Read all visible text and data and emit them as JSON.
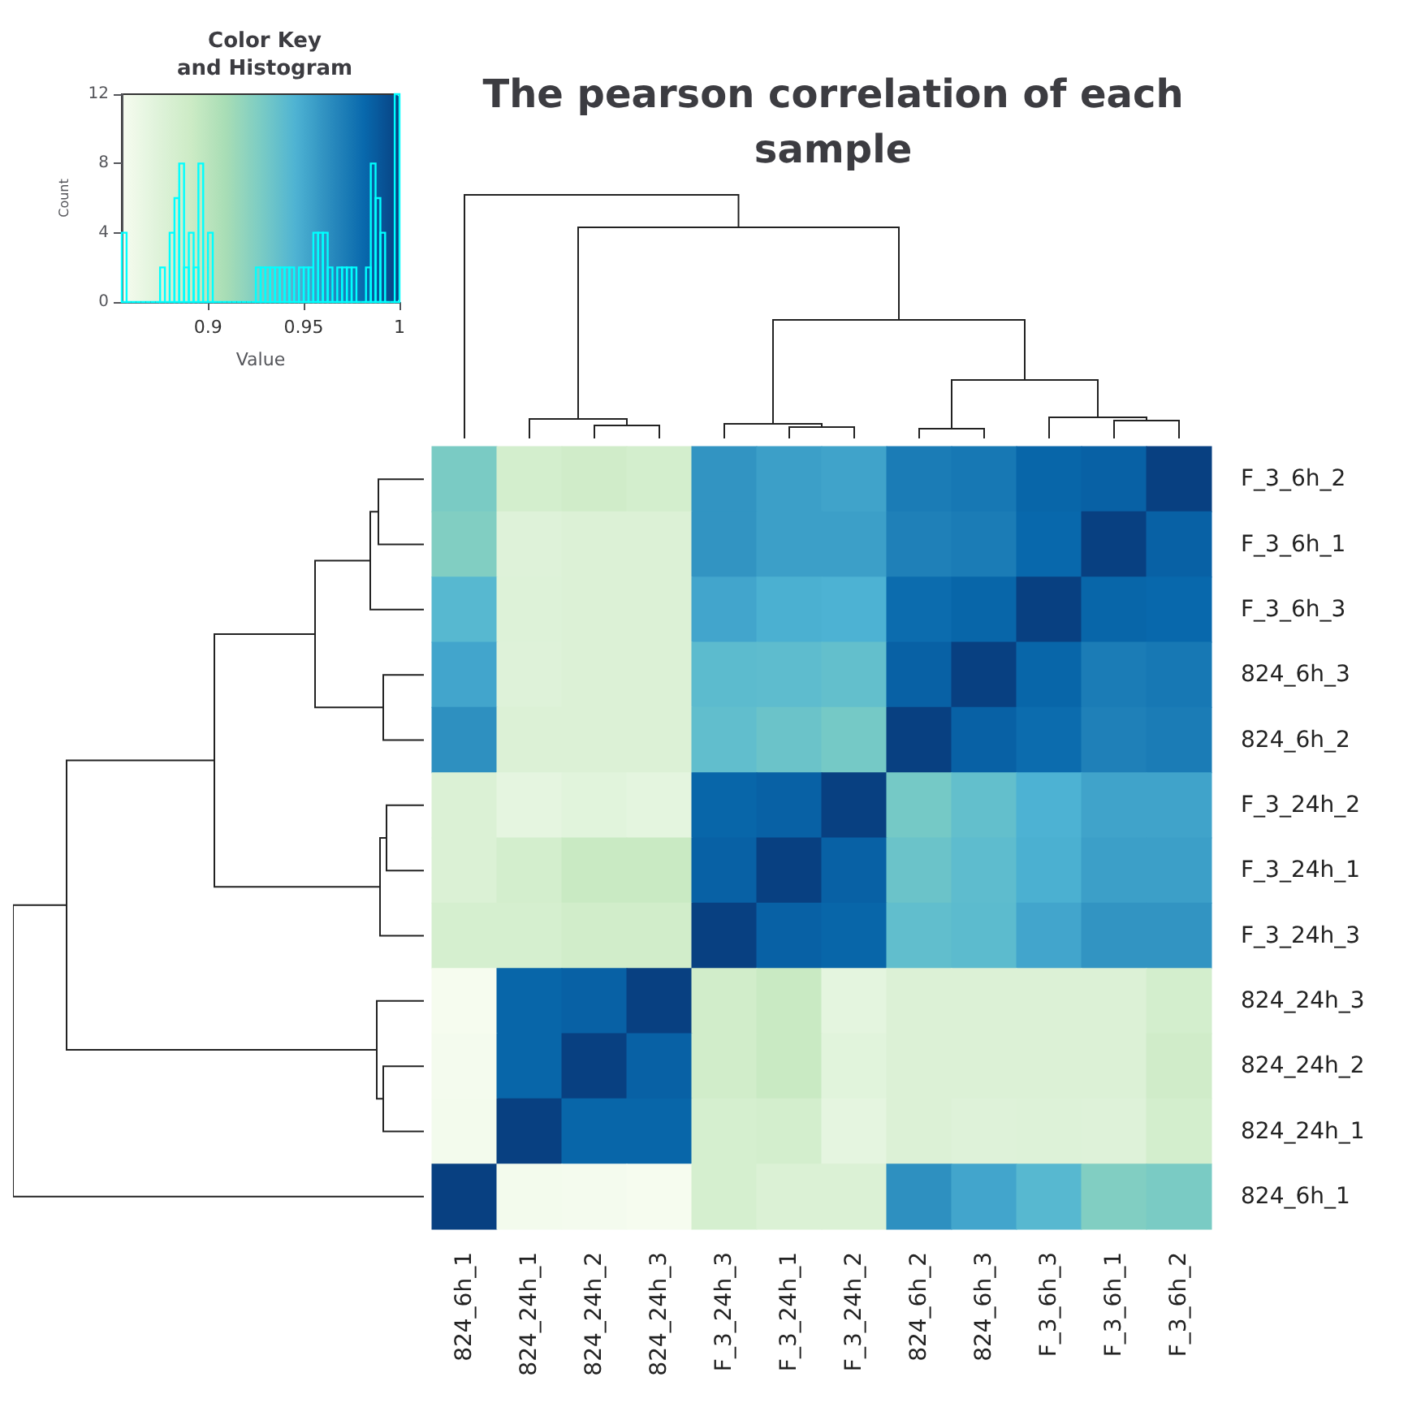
{
  "chart_data": [
    {
      "type": "histogram",
      "title": "Color Key\nand Histogram",
      "xlabel": "Value",
      "ylabel": "Count",
      "color": "#00ffff",
      "bins": [
        0.855,
        0.8575,
        0.86,
        0.8625,
        0.865,
        0.8675,
        0.87,
        0.8725,
        0.875,
        0.8775,
        0.88,
        0.8825,
        0.885,
        0.8875,
        0.89,
        0.8925,
        0.895,
        0.8975,
        0.9,
        0.9025,
        0.905,
        0.9075,
        0.91,
        0.9125,
        0.915,
        0.9175,
        0.92,
        0.9225,
        0.925,
        0.9275,
        0.93,
        0.9325,
        0.935,
        0.9375,
        0.94,
        0.9425,
        0.945,
        0.9475,
        0.95,
        0.9525,
        0.955,
        0.9575,
        0.96,
        0.9625,
        0.965,
        0.9675,
        0.97,
        0.9725,
        0.975,
        0.9775,
        0.98,
        0.9825,
        0.985,
        0.9875,
        0.99,
        0.9925,
        0.995,
        0.9975,
        1.0
      ],
      "values": [
        4,
        0,
        0,
        0,
        0,
        0,
        0,
        0,
        2,
        0,
        4,
        6,
        8,
        2,
        4,
        2,
        8,
        0,
        4,
        0,
        0,
        0,
        0,
        0,
        0,
        0,
        0,
        0,
        2,
        2,
        2,
        2,
        2,
        2,
        2,
        2,
        0,
        2,
        2,
        2,
        4,
        4,
        4,
        2,
        0,
        2,
        2,
        2,
        2,
        0,
        0,
        2,
        8,
        6,
        4,
        0,
        0,
        12
      ],
      "xlim": [
        0.855,
        1.0
      ],
      "xticks": [
        0.9,
        0.95,
        1
      ],
      "ylim": [
        0,
        12
      ],
      "yticks": [
        0,
        4,
        8,
        12
      ],
      "grid": false,
      "tick_labels": "y"
    },
    {
      "type": "heatmap",
      "title": "The pearson correlation of each\nsample",
      "categories": [
        "824_6h_1",
        "824_24h_1",
        "824_24h_2",
        "824_24h_3",
        "F_3_24h_3",
        "F_3_24h_1",
        "F_3_24h_2",
        "824_6h_2",
        "824_6h_3",
        "F_3_6h_3",
        "F_3_6h_1",
        "F_3_6h_2"
      ],
      "y_categories": [
        "F_3_6h_2",
        "F_3_6h_1",
        "F_3_6h_3",
        "824_6h_3",
        "824_6h_2",
        "F_3_24h_2",
        "F_3_24h_1",
        "F_3_24h_3",
        "824_24h_3",
        "824_24h_2",
        "824_24h_1",
        "824_6h_1"
      ],
      "cells": [
        [
          0.928,
          0.885,
          0.888,
          0.885,
          0.96,
          0.955,
          0.953,
          0.972,
          0.974,
          0.983,
          0.985,
          1
        ],
        [
          0.925,
          0.875,
          0.877,
          0.877,
          0.96,
          0.955,
          0.955,
          0.97,
          0.972,
          0.982,
          1,
          0.985
        ],
        [
          0.942,
          0.876,
          0.877,
          0.877,
          0.952,
          0.947,
          0.946,
          0.98,
          0.983,
          1,
          0.983,
          0.982
        ],
        [
          0.952,
          0.875,
          0.877,
          0.877,
          0.94,
          0.939,
          0.937,
          0.985,
          1,
          0.983,
          0.972,
          0.974
        ],
        [
          0.962,
          0.877,
          0.877,
          0.877,
          0.938,
          0.934,
          0.93,
          1,
          0.985,
          0.98,
          0.97,
          0.972
        ],
        [
          0.878,
          0.869,
          0.872,
          0.87,
          0.983,
          0.985,
          1,
          0.93,
          0.937,
          0.946,
          0.953,
          0.953
        ],
        [
          0.878,
          0.885,
          0.893,
          0.893,
          0.985,
          1,
          0.985,
          0.934,
          0.939,
          0.947,
          0.955,
          0.955
        ],
        [
          0.883,
          0.883,
          0.887,
          0.887,
          1,
          0.985,
          0.983,
          0.938,
          0.94,
          0.952,
          0.96,
          0.96
        ],
        [
          0.856,
          0.983,
          0.985,
          1,
          0.887,
          0.893,
          0.87,
          0.877,
          0.877,
          0.877,
          0.877,
          0.885
        ],
        [
          0.857,
          0.983,
          1,
          0.985,
          0.887,
          0.893,
          0.872,
          0.877,
          0.877,
          0.877,
          0.877,
          0.888
        ],
        [
          0.858,
          1,
          0.983,
          0.983,
          0.883,
          0.885,
          0.869,
          0.877,
          0.875,
          0.876,
          0.875,
          0.885
        ],
        [
          1,
          0.858,
          0.857,
          0.856,
          0.883,
          0.878,
          0.878,
          0.962,
          0.952,
          0.942,
          0.925,
          0.928
        ]
      ],
      "clim": [
        0.855,
        1.0
      ],
      "cticks": [
        0.9,
        0.95,
        1
      ]
    }
  ]
}
